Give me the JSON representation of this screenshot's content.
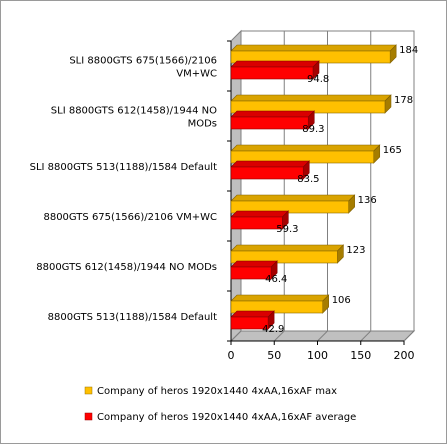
{
  "chart_data": {
    "type": "bar",
    "orientation": "horizontal",
    "style": "3d",
    "categories": [
      [
        "SLI 8800GTS 675(1566)/2106",
        "VM+WC"
      ],
      [
        "SLI 8800GTS 612(1458)/1944 NO",
        "MODs"
      ],
      [
        "SLI 8800GTS 513(1188)/1584 Default"
      ],
      [
        "8800GTS 675(1566)/2106 VM+WC"
      ],
      [
        "8800GTS 612(1458)/1944 NO MODs"
      ],
      [
        "8800GTS 513(1188)/1584 Default"
      ]
    ],
    "series": [
      {
        "name": "Company of heros 1920x1440 4xAA,16xAF max",
        "color": "#ffc000",
        "values": [
          184,
          178,
          165,
          136,
          123,
          106
        ],
        "labels": [
          "184",
          "178",
          "165",
          "136",
          "123",
          "106"
        ]
      },
      {
        "name": "Company of heros 1920x1440 4xAA,16xAF average",
        "color": "#ff0000",
        "values": [
          94.8,
          89.3,
          83.5,
          59.3,
          46.4,
          42.9
        ],
        "labels": [
          "94.8",
          "89.3",
          "83.5",
          "59.3",
          "46.4",
          "42.9"
        ]
      }
    ],
    "xlim": [
      0,
      200
    ],
    "xticks": [
      "0",
      "50",
      "100",
      "150",
      "200"
    ],
    "grid": true,
    "legend_position": "bottom"
  }
}
